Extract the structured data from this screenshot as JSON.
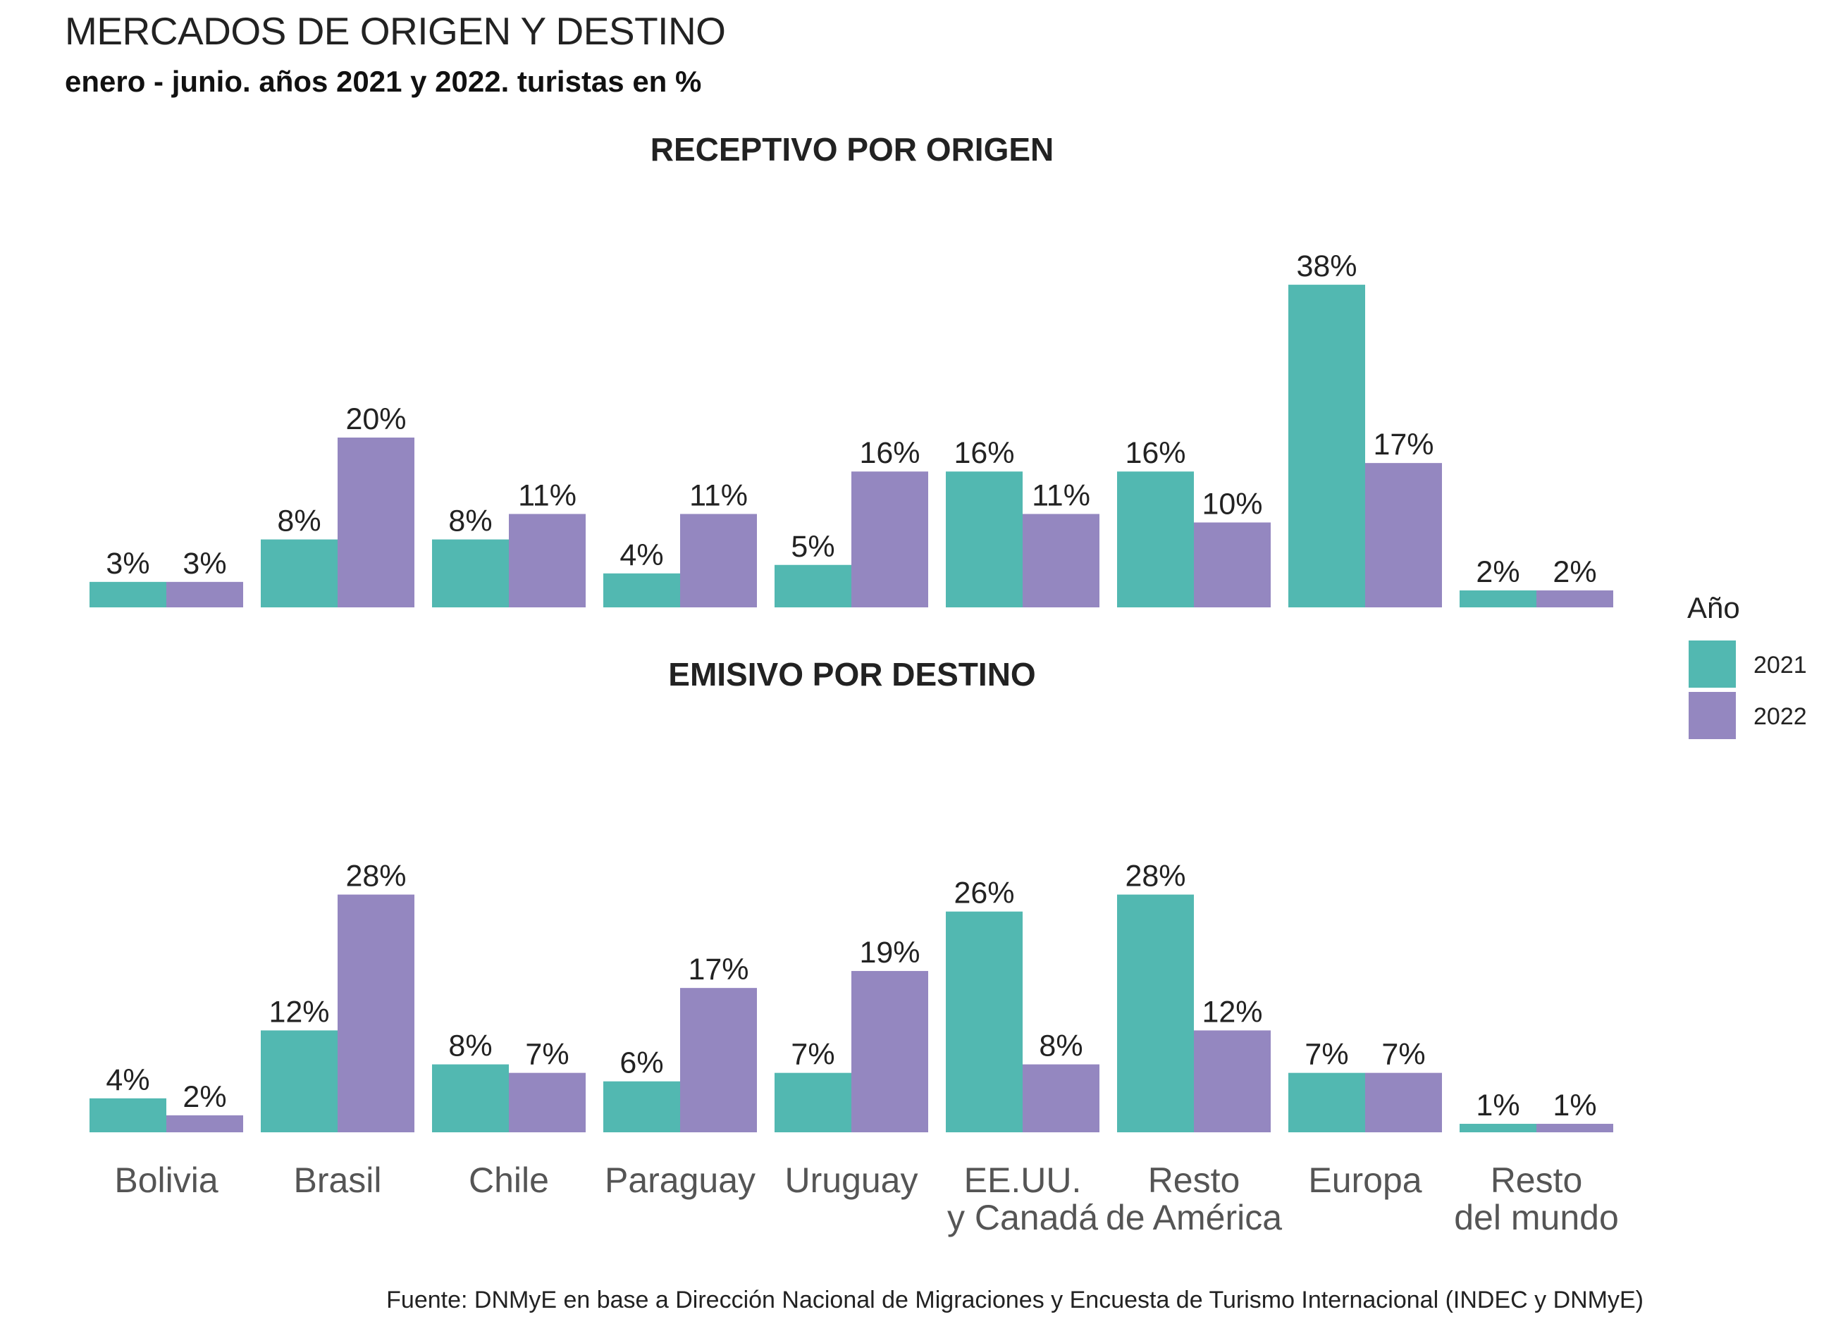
{
  "title": "MERCADOS DE ORIGEN Y DESTINO",
  "subtitle": "enero - junio. años 2021 y 2022. turistas en %",
  "source": "Fuente: DNMyE en base a Dirección Nacional de Migraciones y Encuesta de Turismo Internacional (INDEC y DNMyE)",
  "colors": {
    "2021": "#52b8b1",
    "2022": "#9487c0"
  },
  "chart_data": [
    {
      "type": "bar",
      "title": "RECEPTIVO POR ORIGEN",
      "categories": [
        "Bolivia",
        "Brasil",
        "Chile",
        "Paraguay",
        "Uruguay",
        "EE.UU.\ny Canadá",
        "Resto\nde América",
        "Europa",
        "Resto\ndel mundo"
      ],
      "unit": "%",
      "ylim": [
        0,
        40
      ],
      "grid": false,
      "legend_title": "Año",
      "legend_position": "right",
      "series": [
        {
          "name": "2021",
          "values": [
            3,
            8,
            8,
            4,
            5,
            16,
            16,
            38,
            2
          ]
        },
        {
          "name": "2022",
          "values": [
            3,
            20,
            11,
            11,
            16,
            11,
            10,
            17,
            2
          ]
        }
      ]
    },
    {
      "type": "bar",
      "title": "EMISIVO POR DESTINO",
      "categories": [
        "Bolivia",
        "Brasil",
        "Chile",
        "Paraguay",
        "Uruguay",
        "EE.UU.\ny Canadá",
        "Resto\nde América",
        "Europa",
        "Resto\ndel mundo"
      ],
      "unit": "%",
      "ylim": [
        0,
        40
      ],
      "grid": false,
      "legend_title": "Año",
      "legend_position": "right",
      "series": [
        {
          "name": "2021",
          "values": [
            4,
            12,
            8,
            6,
            7,
            26,
            28,
            7,
            1
          ]
        },
        {
          "name": "2022",
          "values": [
            2,
            28,
            7,
            17,
            19,
            8,
            12,
            7,
            1
          ]
        }
      ]
    }
  ]
}
